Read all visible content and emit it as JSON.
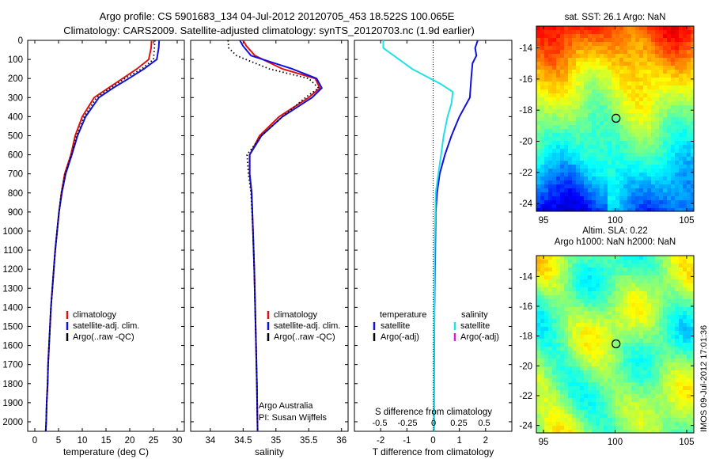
{
  "figure": {
    "title_line1": "Argo profile: CS 5901683_134 04-Jul-2012 20120705_453 18.522S 100.065E",
    "title_line2": "Climatology: CARS2009. Satellite-adjusted climatology: synTS_20120703.nc (1.9d earlier)",
    "stamp": "IMOS 09-Jul-2012 17:01:36"
  },
  "colors": {
    "climatology": "#dd1111",
    "satellite": "#1111dd",
    "argo": "#000000",
    "salinity_satellite": "#22e0e8",
    "argo_adj_salinity": "#d020d0"
  },
  "chart_data": [
    {
      "type": "line",
      "id": "temperature",
      "xlabel": "temperature (deg C)",
      "xlim": [
        -1.5,
        31.5
      ],
      "ylim": [
        2050,
        0
      ],
      "x_ticks": [
        0,
        5,
        10,
        15,
        20,
        25,
        30
      ],
      "y_ticks": [
        0,
        100,
        200,
        300,
        400,
        500,
        600,
        700,
        800,
        900,
        1000,
        1100,
        1200,
        1300,
        1400,
        1500,
        1600,
        1700,
        1800,
        1900,
        2000
      ],
      "legend_placement": "lower-center",
      "series": [
        {
          "name": "climatology",
          "style": "solid",
          "color_key": "climatology",
          "points": [
            [
              24.6,
              0
            ],
            [
              24.5,
              40
            ],
            [
              24.0,
              100
            ],
            [
              21.5,
              150
            ],
            [
              18.5,
              200
            ],
            [
              15.5,
              250
            ],
            [
              12.5,
              300
            ],
            [
              10.0,
              400
            ],
            [
              8.5,
              500
            ],
            [
              7.6,
              600
            ],
            [
              6.3,
              700
            ],
            [
              5.6,
              800
            ],
            [
              5.1,
              900
            ],
            [
              4.7,
              1000
            ],
            [
              4.3,
              1100
            ],
            [
              4.0,
              1200
            ],
            [
              3.7,
              1300
            ],
            [
              3.4,
              1400
            ],
            [
              3.2,
              1500
            ],
            [
              3.0,
              1600
            ],
            [
              2.8,
              1700
            ],
            [
              2.7,
              1800
            ],
            [
              2.5,
              1900
            ],
            [
              2.4,
              2000
            ],
            [
              2.3,
              2050
            ]
          ]
        },
        {
          "name": "satellite-adj. clim.",
          "style": "solid",
          "color_key": "satellite",
          "points": [
            [
              26.2,
              0
            ],
            [
              26.1,
              40
            ],
            [
              25.7,
              100
            ],
            [
              23.0,
              150
            ],
            [
              19.8,
              200
            ],
            [
              16.5,
              250
            ],
            [
              13.5,
              300
            ],
            [
              10.7,
              400
            ],
            [
              9.0,
              500
            ],
            [
              7.8,
              600
            ],
            [
              6.5,
              700
            ],
            [
              5.7,
              800
            ],
            [
              5.1,
              900
            ],
            [
              4.7,
              1000
            ],
            [
              4.3,
              1100
            ],
            [
              4.0,
              1200
            ],
            [
              3.7,
              1300
            ],
            [
              3.4,
              1400
            ],
            [
              3.2,
              1500
            ],
            [
              3.0,
              1600
            ],
            [
              2.8,
              1700
            ],
            [
              2.7,
              1800
            ],
            [
              2.5,
              1900
            ],
            [
              2.4,
              2000
            ],
            [
              2.3,
              2050
            ]
          ]
        },
        {
          "name": "Argo(..raw -QC)",
          "style": "dotted",
          "color_key": "argo",
          "points": [
            [
              25.3,
              0
            ],
            [
              25.2,
              40
            ],
            [
              25.0,
              100
            ],
            [
              22.5,
              150
            ],
            [
              19.0,
              200
            ],
            [
              16.0,
              250
            ],
            [
              13.0,
              300
            ],
            [
              10.4,
              400
            ],
            [
              8.8,
              500
            ],
            [
              7.7,
              600
            ],
            [
              6.4,
              700
            ],
            [
              5.6,
              800
            ],
            [
              5.1,
              900
            ],
            [
              4.7,
              1000
            ],
            [
              4.3,
              1100
            ],
            [
              4.0,
              1200
            ],
            [
              3.7,
              1300
            ],
            [
              3.4,
              1400
            ],
            [
              3.2,
              1500
            ],
            [
              3.0,
              1600
            ],
            [
              2.8,
              1700
            ],
            [
              2.7,
              1800
            ],
            [
              2.5,
              1900
            ],
            [
              2.4,
              2000
            ],
            [
              2.3,
              2050
            ]
          ]
        }
      ],
      "legend": [
        "climatology",
        "satellite-adj. clim.",
        "Argo(..raw -QC)"
      ]
    },
    {
      "type": "line",
      "id": "salinity",
      "xlabel": "salinity",
      "xlim": [
        33.7,
        36.1
      ],
      "ylim": [
        2050,
        0
      ],
      "x_ticks": [
        34,
        34.5,
        35,
        35.5,
        36
      ],
      "x_tick_labels": [
        "34",
        "34.5",
        "35",
        "35.5",
        "36"
      ],
      "legend_placement": "lower-center",
      "annotation": [
        "Argo Australia",
        "PI: Susan Wijffels"
      ],
      "series": [
        {
          "name": "climatology",
          "style": "solid",
          "color_key": "climatology",
          "points": [
            [
              34.5,
              0
            ],
            [
              34.55,
              30
            ],
            [
              34.68,
              80
            ],
            [
              35.1,
              150
            ],
            [
              35.6,
              200
            ],
            [
              35.67,
              250
            ],
            [
              35.5,
              300
            ],
            [
              35.05,
              400
            ],
            [
              34.75,
              500
            ],
            [
              34.6,
              600
            ],
            [
              34.6,
              700
            ],
            [
              34.63,
              800
            ],
            [
              34.65,
              1000
            ],
            [
              34.67,
              1200
            ],
            [
              34.69,
              1500
            ],
            [
              34.71,
              1800
            ],
            [
              34.72,
              2050
            ]
          ]
        },
        {
          "name": "satellite-adj. clim.",
          "style": "solid",
          "color_key": "satellite",
          "points": [
            [
              34.45,
              0
            ],
            [
              34.5,
              30
            ],
            [
              34.62,
              80
            ],
            [
              35.25,
              150
            ],
            [
              35.62,
              200
            ],
            [
              35.7,
              250
            ],
            [
              35.55,
              300
            ],
            [
              35.1,
              400
            ],
            [
              34.78,
              500
            ],
            [
              34.6,
              600
            ],
            [
              34.6,
              700
            ],
            [
              34.63,
              800
            ],
            [
              34.65,
              1000
            ],
            [
              34.67,
              1200
            ],
            [
              34.69,
              1500
            ],
            [
              34.71,
              1800
            ],
            [
              34.72,
              2050
            ]
          ]
        },
        {
          "name": "Argo(..raw -QC)",
          "style": "dotted",
          "color_key": "argo",
          "points": [
            [
              34.27,
              0
            ],
            [
              34.28,
              40
            ],
            [
              34.4,
              80
            ],
            [
              34.9,
              150
            ],
            [
              35.5,
              200
            ],
            [
              35.65,
              250
            ],
            [
              35.45,
              300
            ],
            [
              35.1,
              400
            ],
            [
              34.78,
              500
            ],
            [
              34.56,
              600
            ],
            [
              34.58,
              700
            ],
            [
              34.62,
              800
            ],
            [
              34.65,
              1000
            ],
            [
              34.67,
              1200
            ],
            [
              34.69,
              1500
            ],
            [
              34.71,
              1800
            ],
            [
              34.72,
              2050
            ]
          ]
        }
      ],
      "legend": [
        "climatology",
        "satellite-adj. clim.",
        "Argo(..raw -QC)"
      ]
    },
    {
      "type": "line",
      "id": "difference",
      "xlabel": "T difference from climatology",
      "top_label": "S difference from climatology",
      "xlim": [
        -3,
        3
      ],
      "ylim": [
        2050,
        0
      ],
      "x_ticks": [
        -2,
        -1,
        0,
        1,
        2
      ],
      "x_tick_labels": [
        "-2",
        "-1",
        "0",
        "1",
        "2"
      ],
      "s_ticks": [
        "-0.5",
        "-0.25",
        "0",
        "0.25",
        "0.5"
      ],
      "legend_placement": "lower-center",
      "legend_headers": [
        "temperature",
        "salinity"
      ],
      "series": [
        {
          "name": "temperature satellite",
          "style": "solid",
          "color_key": "satellite",
          "points": [
            [
              1.7,
              0
            ],
            [
              1.6,
              40
            ],
            [
              1.65,
              80
            ],
            [
              1.5,
              120
            ],
            [
              1.45,
              200
            ],
            [
              1.4,
              300
            ],
            [
              1.0,
              400
            ],
            [
              0.7,
              500
            ],
            [
              0.45,
              600
            ],
            [
              0.25,
              700
            ],
            [
              0.15,
              800
            ],
            [
              0.1,
              900
            ],
            [
              0.08,
              1100
            ],
            [
              0.05,
              1400
            ],
            [
              0.04,
              1700
            ],
            [
              0.03,
              2050
            ]
          ]
        },
        {
          "name": "salinity satellite",
          "style": "solid",
          "color_key": "salinity_satellite",
          "points": [
            [
              -1.9,
              0
            ],
            [
              -1.9,
              40
            ],
            [
              -1.5,
              80
            ],
            [
              -0.8,
              150
            ],
            [
              0.3,
              230
            ],
            [
              0.75,
              270
            ],
            [
              0.7,
              330
            ],
            [
              0.55,
              400
            ],
            [
              0.4,
              500
            ],
            [
              0.3,
              600
            ],
            [
              0.2,
              700
            ],
            [
              0.1,
              800
            ],
            [
              0.07,
              1000
            ],
            [
              0.05,
              1300
            ],
            [
              0.03,
              1700
            ],
            [
              0.02,
              2050
            ]
          ]
        }
      ],
      "legend_temperature": [
        "satellite",
        "Argo(-adj)"
      ],
      "legend_salinity": [
        "satellite",
        "Argo(-adj)"
      ]
    },
    {
      "type": "heatmap",
      "id": "sst_map",
      "title": "sat. SST: 26.1  Argo: NaN",
      "x_ticks": [
        95,
        100,
        105
      ],
      "y_ticks": [
        -14,
        -16,
        -18,
        -20,
        -22,
        -24
      ],
      "xlim": [
        94.5,
        105.5
      ],
      "ylim": [
        -24.5,
        -12.6
      ],
      "marker": [
        100.065,
        -18.522
      ]
    },
    {
      "type": "heatmap",
      "id": "sla_map",
      "title_line1": "Altim. SLA: 0.22",
      "title_line2": "Argo h1000: NaN h2000: NaN",
      "x_ticks": [
        95,
        100,
        105
      ],
      "y_ticks": [
        -14,
        -16,
        -18,
        -20,
        -22,
        -24
      ],
      "xlim": [
        94.5,
        105.5
      ],
      "ylim": [
        -24.5,
        -12.6
      ],
      "marker": [
        100.065,
        -18.522
      ]
    }
  ]
}
